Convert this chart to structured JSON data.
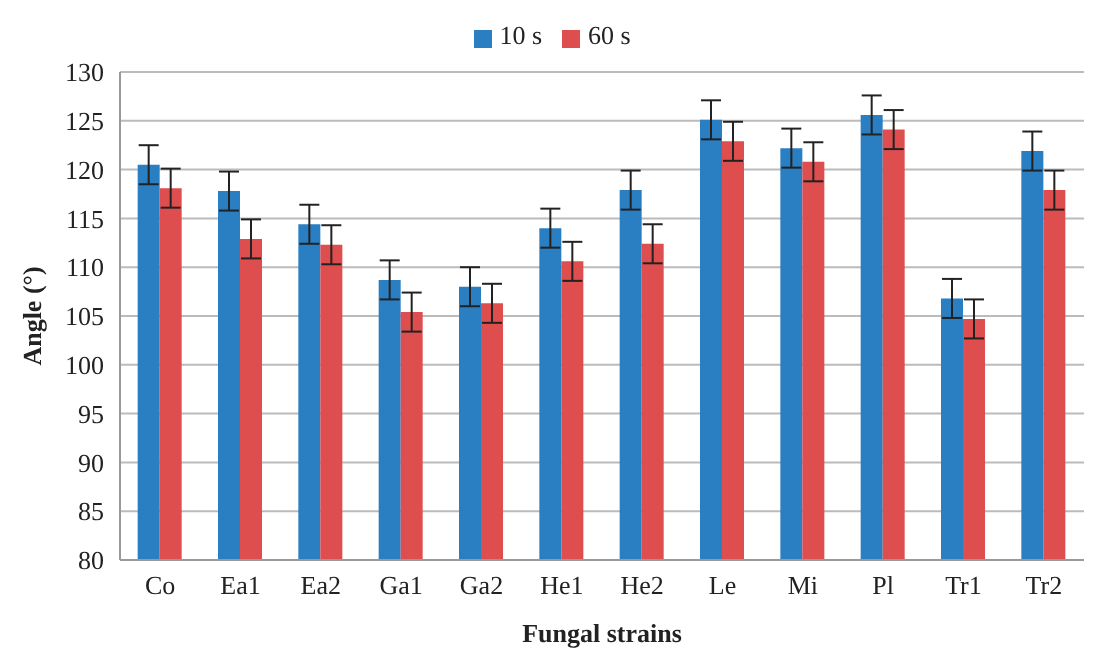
{
  "chart_data": {
    "type": "bar",
    "xlabel": "Fungal strains",
    "ylabel": "Angle (°)",
    "categories": [
      "Co",
      "Ea1",
      "Ea2",
      "Ga1",
      "Ga2",
      "He1",
      "He2",
      "Le",
      "Mi",
      "Pl",
      "Tr1",
      "Tr2"
    ],
    "series": [
      {
        "name": "10 s",
        "color": "#2a7ec2",
        "values": [
          120.5,
          117.8,
          114.4,
          108.7,
          108.0,
          114.0,
          117.9,
          125.1,
          122.2,
          125.6,
          106.8,
          121.9
        ],
        "errors": [
          2,
          2,
          2,
          2,
          2,
          2,
          2,
          2,
          2,
          2,
          2,
          2
        ]
      },
      {
        "name": "60 s",
        "color": "#de4e4e",
        "values": [
          118.1,
          112.9,
          112.3,
          105.4,
          106.3,
          110.6,
          112.4,
          122.9,
          120.8,
          124.1,
          104.7,
          117.9
        ],
        "errors": [
          2,
          2,
          2,
          2,
          2,
          2,
          2,
          2,
          2,
          2,
          2,
          2
        ]
      }
    ],
    "ylim": [
      80,
      130
    ],
    "yticks": [
      80,
      85,
      90,
      95,
      100,
      105,
      110,
      115,
      120,
      125,
      130
    ],
    "grid": "y",
    "legend": "top"
  }
}
